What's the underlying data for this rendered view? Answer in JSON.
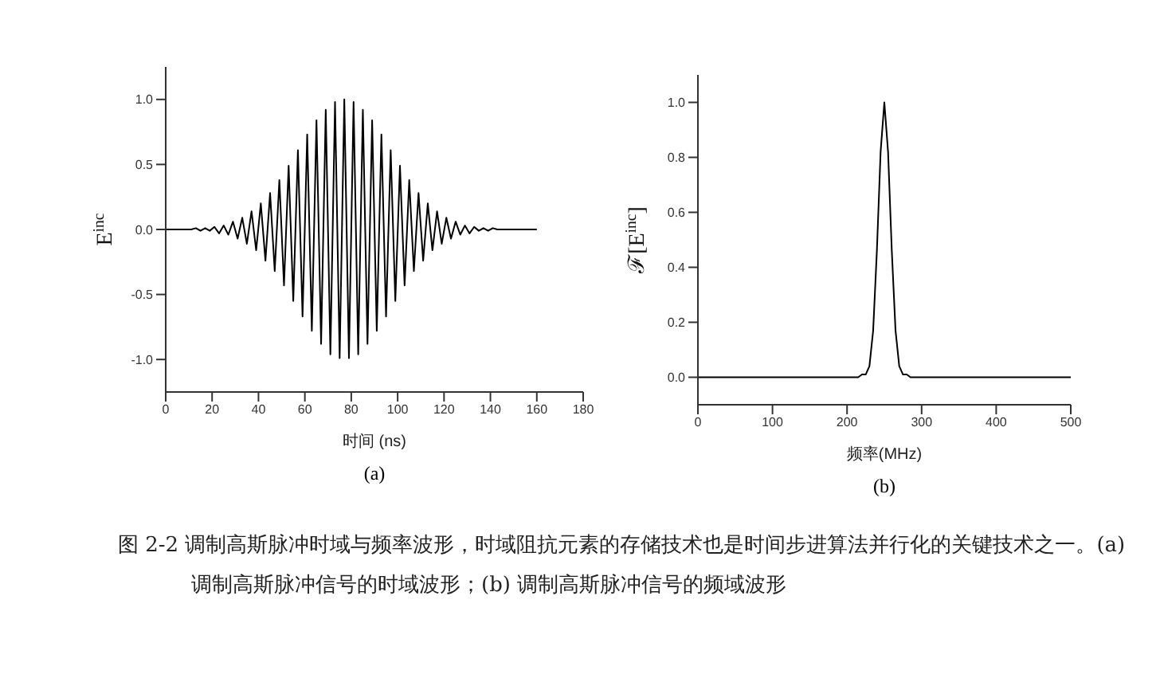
{
  "chart_data": [
    {
      "type": "line",
      "title": "(a)",
      "xlabel": "时间 (ns)",
      "ylabel": "E$^{inc}$",
      "xlim": [
        0,
        180
      ],
      "xticks": [
        0,
        20,
        40,
        60,
        80,
        100,
        120,
        140,
        160,
        180
      ],
      "ylim": [
        -1.25,
        1.25
      ],
      "yticks": [
        {
          "value": -1,
          "label": "-1.0"
        },
        -0.5,
        {
          "value": 0,
          "label": "0.0"
        },
        0.5,
        {
          "value": 1,
          "label": "1.0"
        }
      ],
      "grid": false,
      "legend": false,
      "marker": "none",
      "line_style": "solid",
      "annotations": [
        "图 2-2 调制高斯脉冲时域与频率波形，时域阻抗元素的存储技术也是时间步进算法并行化的关键技术之一。(a) 调制高斯脉冲信号的时域波形；(b) 调制高斯脉冲信号的频域波形"
      ],
      "series": [
        {
          "color": "#000000",
          "x": [
            0,
            11,
            13,
            15,
            17,
            19,
            21,
            23,
            25,
            27,
            29,
            31,
            33,
            35,
            37,
            39,
            41,
            43,
            45,
            47,
            49,
            51,
            53,
            55,
            57,
            59,
            61,
            63,
            65,
            67,
            69,
            71,
            73,
            75,
            77,
            79,
            81,
            83,
            85,
            87,
            89,
            91,
            93,
            95,
            97,
            99,
            101,
            103,
            105,
            107,
            109,
            111,
            113,
            115,
            117,
            119,
            121,
            123,
            125,
            127,
            129,
            131,
            133,
            135,
            137,
            139,
            141,
            143,
            160
          ],
          "values": [
            0,
            0,
            0.01,
            -0.01,
            0.01,
            -0.01,
            0.02,
            -0.03,
            0.03,
            -0.04,
            0.06,
            -0.07,
            0.09,
            -0.11,
            0.14,
            -0.16,
            0.2,
            -0.24,
            0.28,
            -0.32,
            0.38,
            -0.43,
            0.49,
            -0.55,
            0.61,
            -0.67,
            0.73,
            -0.78,
            0.84,
            -0.88,
            0.92,
            -0.96,
            0.98,
            -0.99,
            1,
            -0.99,
            0.98,
            -0.96,
            0.92,
            -0.88,
            0.84,
            -0.78,
            0.73,
            -0.67,
            0.61,
            -0.55,
            0.49,
            -0.43,
            0.38,
            -0.32,
            0.28,
            -0.24,
            0.2,
            -0.16,
            0.14,
            -0.11,
            0.09,
            -0.07,
            0.06,
            -0.04,
            0.03,
            -0.03,
            0.02,
            -0.01,
            0.01,
            -0.01,
            0.01,
            0,
            0
          ]
        }
      ]
    },
    {
      "type": "line",
      "title": "(b)",
      "xlabel": "频率(MHz)",
      "ylabel": "ℱ[E$^{inc}$]",
      "xlim": [
        0,
        500
      ],
      "xticks": [
        0,
        100,
        200,
        300,
        400,
        500
      ],
      "ylim": [
        -0.1,
        1.1
      ],
      "yticks": [
        {
          "value": 0,
          "label": "0.0"
        },
        0.2,
        0.4,
        0.6,
        0.8,
        {
          "value": 1,
          "label": "1.0"
        }
      ],
      "grid": false,
      "legend": false,
      "marker": "none",
      "line_style": "solid",
      "series": [
        {
          "color": "#000000",
          "x": [
            0,
            215,
            220,
            225,
            230,
            235,
            240,
            245,
            250,
            255,
            260,
            265,
            270,
            275,
            280,
            285,
            500
          ],
          "values": [
            0,
            0,
            0.01,
            0.01,
            0.04,
            0.17,
            0.46,
            0.82,
            1,
            0.82,
            0.46,
            0.17,
            0.04,
            0.01,
            0.01,
            0,
            0
          ]
        }
      ]
    }
  ]
}
